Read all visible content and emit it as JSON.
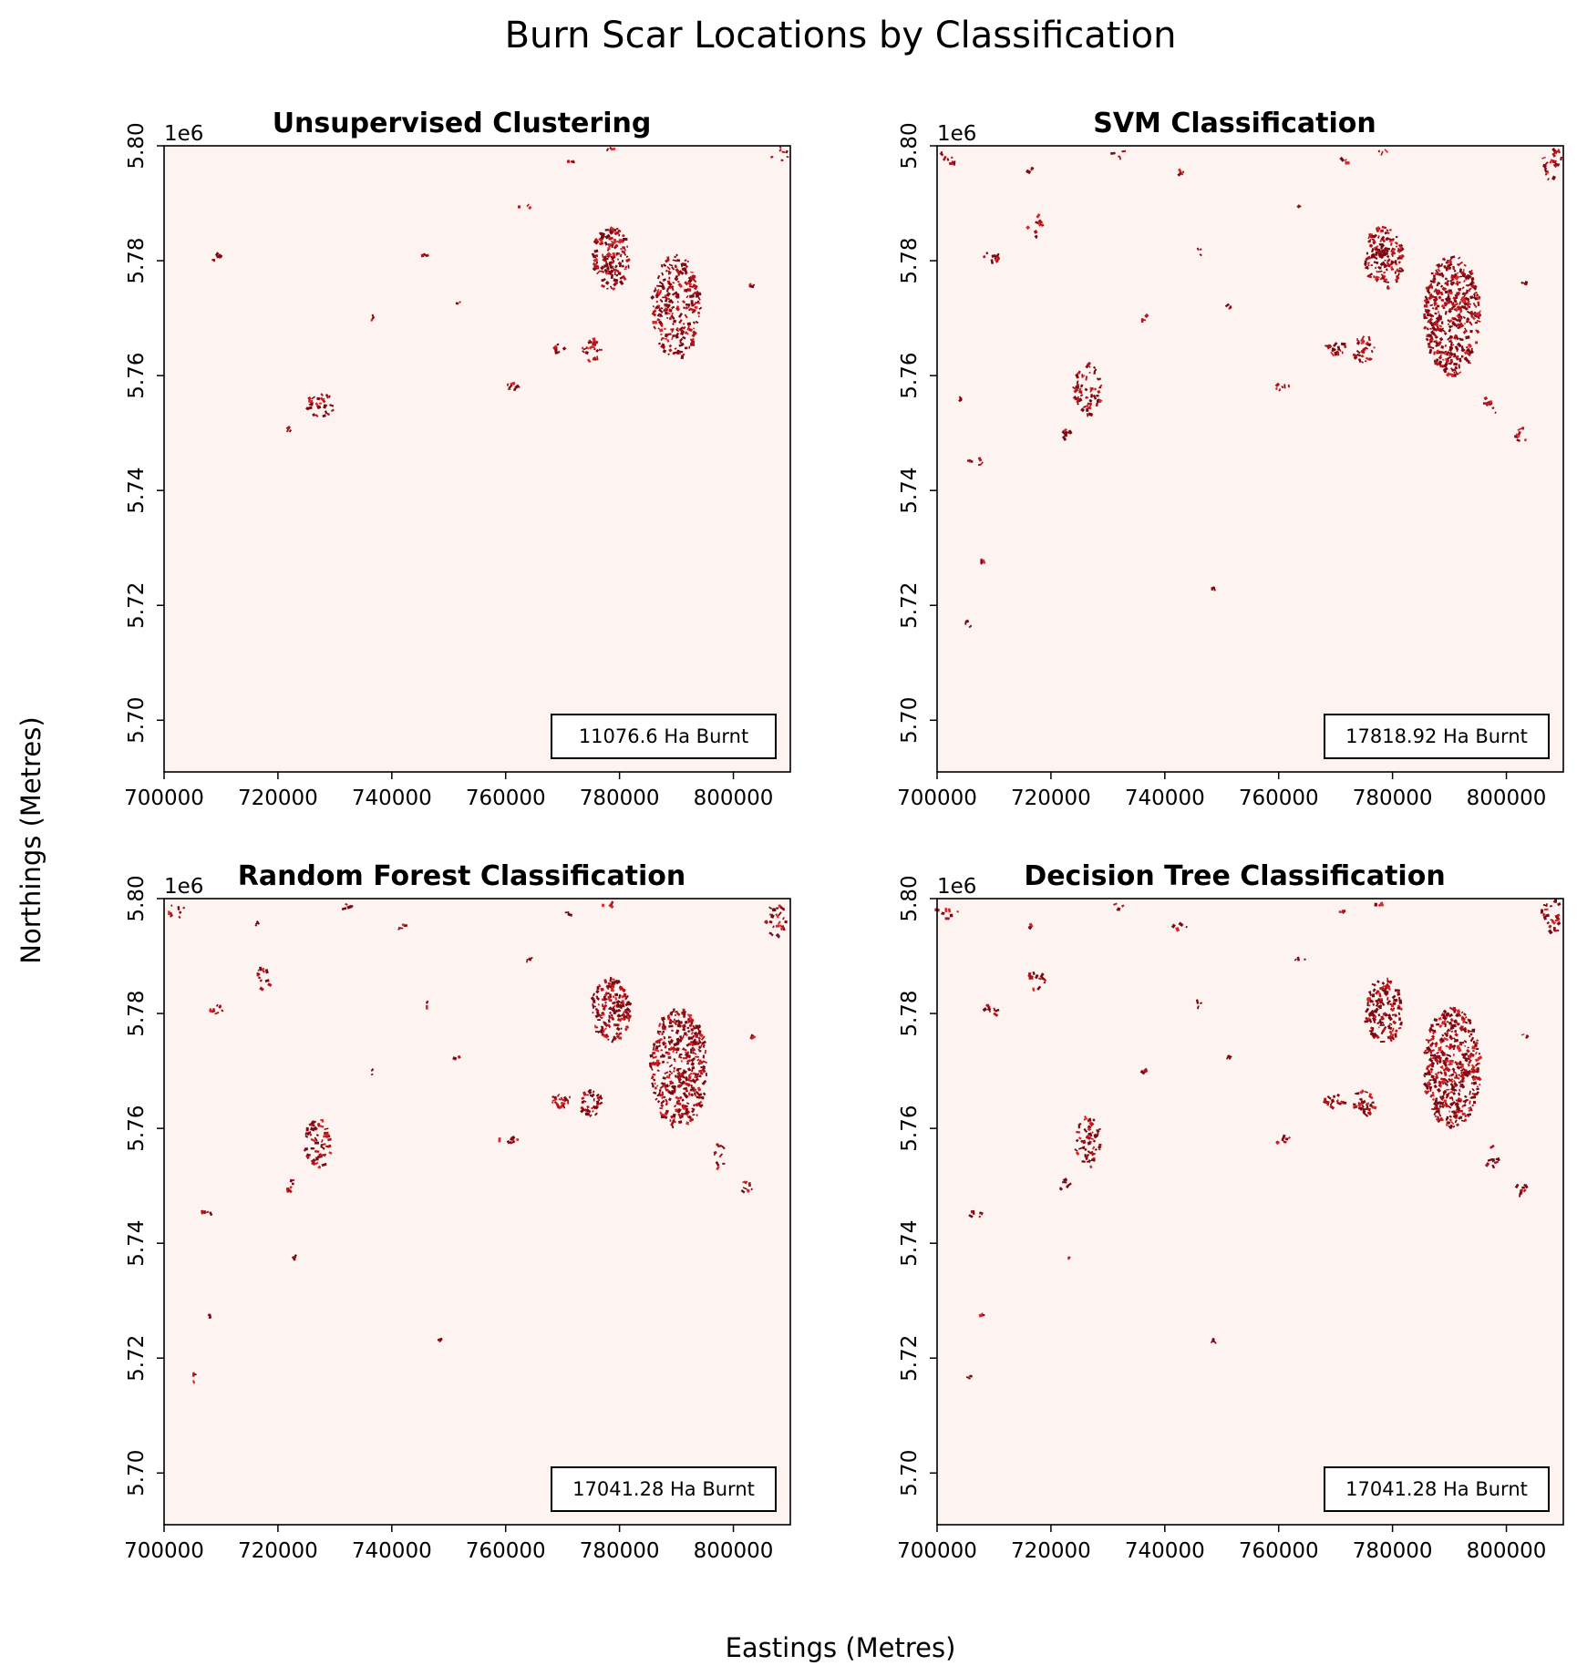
{
  "figure": {
    "title": "Burn Scar Locations by Classification",
    "xlabel": "Eastings (Metres)",
    "ylabel": "Northings (Metres)"
  },
  "colors": {
    "background_raster": "#fdf3f0",
    "burn_dark": "#7a0912",
    "burn_mid": "#b3131b",
    "burn_light": "#d8262a"
  },
  "chart_data": [
    {
      "type": "heatmap",
      "title": "Unsupervised Clustering",
      "area_label": "11076.6 Ha Burnt",
      "burnt_area_ha": 11076.6,
      "xlim": [
        700000,
        810000
      ],
      "ylim": [
        5691000,
        5800000
      ],
      "x_ticks": [
        700000,
        720000,
        740000,
        760000,
        780000,
        800000
      ],
      "x_tick_labels": [
        "700000",
        "720000",
        "740000",
        "760000",
        "780000",
        "800000"
      ],
      "y_ticks": [
        5700000,
        5720000,
        5740000,
        5760000,
        5780000,
        5800000
      ],
      "y_tick_labels": [
        "5.70",
        "5.72",
        "5.74",
        "5.76",
        "5.78",
        "5.80"
      ],
      "y_offset_label": "1e6",
      "burn_patches": [
        {
          "x": 778500,
          "y": 5780500,
          "w": 6500,
          "h": 11000,
          "density": 0.9
        },
        {
          "x": 790000,
          "y": 5772000,
          "w": 8500,
          "h": 18000,
          "density": 0.7
        },
        {
          "x": 775000,
          "y": 5764500,
          "w": 3500,
          "h": 4000,
          "density": 0.8
        },
        {
          "x": 769500,
          "y": 5764500,
          "w": 2500,
          "h": 2000,
          "density": 0.6
        },
        {
          "x": 727500,
          "y": 5755000,
          "w": 5000,
          "h": 4500,
          "density": 0.6
        },
        {
          "x": 709500,
          "y": 5780500,
          "w": 2500,
          "h": 1500,
          "density": 0.7
        },
        {
          "x": 760500,
          "y": 5758000,
          "w": 4000,
          "h": 1200,
          "density": 0.8
        },
        {
          "x": 746000,
          "y": 5781000,
          "w": 1000,
          "h": 1000,
          "density": 0.8
        },
        {
          "x": 736500,
          "y": 5770000,
          "w": 1200,
          "h": 1200,
          "density": 0.7
        },
        {
          "x": 751500,
          "y": 5772500,
          "w": 1200,
          "h": 1000,
          "density": 0.6
        },
        {
          "x": 722000,
          "y": 5750500,
          "w": 1000,
          "h": 1000,
          "density": 0.6
        },
        {
          "x": 803000,
          "y": 5776000,
          "w": 1500,
          "h": 800,
          "density": 0.7
        },
        {
          "x": 771500,
          "y": 5797000,
          "w": 1200,
          "h": 800,
          "density": 0.6
        },
        {
          "x": 778500,
          "y": 5799500,
          "w": 1500,
          "h": 600,
          "density": 0.4
        },
        {
          "x": 808000,
          "y": 5798500,
          "w": 3500,
          "h": 3000,
          "density": 0.3
        },
        {
          "x": 763500,
          "y": 5789500,
          "w": 3000,
          "h": 800,
          "density": 0.3
        }
      ]
    },
    {
      "type": "heatmap",
      "title": "SVM Classification",
      "area_label": "17818.92 Ha Burnt",
      "burnt_area_ha": 17818.92,
      "xlim": [
        700000,
        810000
      ],
      "ylim": [
        5691000,
        5800000
      ],
      "x_ticks": [
        700000,
        720000,
        740000,
        760000,
        780000,
        800000
      ],
      "x_tick_labels": [
        "700000",
        "720000",
        "740000",
        "760000",
        "780000",
        "800000"
      ],
      "y_ticks": [
        5700000,
        5720000,
        5740000,
        5760000,
        5780000,
        5800000
      ],
      "y_tick_labels": [
        "5.70",
        "5.72",
        "5.74",
        "5.76",
        "5.78",
        "5.80"
      ],
      "y_offset_label": "1e6",
      "burn_patches": [
        {
          "x": 778500,
          "y": 5780500,
          "w": 7000,
          "h": 11000,
          "density": 0.9
        },
        {
          "x": 790500,
          "y": 5770500,
          "w": 10000,
          "h": 21000,
          "density": 0.9
        },
        {
          "x": 775000,
          "y": 5764500,
          "w": 4000,
          "h": 4500,
          "density": 0.9
        },
        {
          "x": 770000,
          "y": 5764800,
          "w": 4000,
          "h": 2500,
          "density": 0.8
        },
        {
          "x": 726500,
          "y": 5757500,
          "w": 5000,
          "h": 9000,
          "density": 0.6
        },
        {
          "x": 709500,
          "y": 5780500,
          "w": 3000,
          "h": 1800,
          "density": 0.8
        },
        {
          "x": 760500,
          "y": 5758000,
          "w": 4000,
          "h": 1200,
          "density": 0.8
        },
        {
          "x": 746000,
          "y": 5781500,
          "w": 1000,
          "h": 1500,
          "density": 0.8
        },
        {
          "x": 736500,
          "y": 5770000,
          "w": 1200,
          "h": 1200,
          "density": 0.7
        },
        {
          "x": 751500,
          "y": 5772000,
          "w": 1500,
          "h": 1500,
          "density": 0.6
        },
        {
          "x": 722500,
          "y": 5750000,
          "w": 2000,
          "h": 2000,
          "density": 0.7
        },
        {
          "x": 707000,
          "y": 5745000,
          "w": 3000,
          "h": 1200,
          "density": 0.7
        },
        {
          "x": 717500,
          "y": 5786000,
          "w": 3000,
          "h": 4000,
          "density": 0.5
        },
        {
          "x": 803000,
          "y": 5776000,
          "w": 1500,
          "h": 800,
          "density": 0.7
        },
        {
          "x": 802500,
          "y": 5749500,
          "w": 2500,
          "h": 3000,
          "density": 0.5
        },
        {
          "x": 808000,
          "y": 5797000,
          "w": 3500,
          "h": 6000,
          "density": 0.5
        },
        {
          "x": 771500,
          "y": 5797500,
          "w": 1500,
          "h": 1200,
          "density": 0.7
        },
        {
          "x": 778000,
          "y": 5799000,
          "w": 2000,
          "h": 800,
          "density": 0.4
        },
        {
          "x": 742500,
          "y": 5795000,
          "w": 3000,
          "h": 1500,
          "density": 0.4
        },
        {
          "x": 732000,
          "y": 5798500,
          "w": 3000,
          "h": 1500,
          "density": 0.4
        },
        {
          "x": 716500,
          "y": 5795500,
          "w": 1000,
          "h": 1500,
          "density": 0.5
        },
        {
          "x": 702000,
          "y": 5798000,
          "w": 4000,
          "h": 3000,
          "density": 0.3
        },
        {
          "x": 763500,
          "y": 5789500,
          "w": 3000,
          "h": 800,
          "density": 0.3
        },
        {
          "x": 748500,
          "y": 5723000,
          "w": 600,
          "h": 600,
          "density": 0.6
        },
        {
          "x": 705500,
          "y": 5716500,
          "w": 1200,
          "h": 1500,
          "density": 0.5
        },
        {
          "x": 708000,
          "y": 5727500,
          "w": 600,
          "h": 800,
          "density": 0.5
        },
        {
          "x": 704000,
          "y": 5756000,
          "w": 600,
          "h": 600,
          "density": 0.5
        },
        {
          "x": 797500,
          "y": 5755000,
          "w": 2500,
          "h": 4000,
          "density": 0.4
        }
      ]
    },
    {
      "type": "heatmap",
      "title": "Random Forest Classification",
      "area_label": "17041.28 Ha Burnt",
      "burnt_area_ha": 17041.28,
      "xlim": [
        700000,
        810000
      ],
      "ylim": [
        5691000,
        5800000
      ],
      "x_ticks": [
        700000,
        720000,
        740000,
        760000,
        780000,
        800000
      ],
      "x_tick_labels": [
        "700000",
        "720000",
        "740000",
        "760000",
        "780000",
        "800000"
      ],
      "y_ticks": [
        5700000,
        5720000,
        5740000,
        5760000,
        5780000,
        5800000
      ],
      "y_tick_labels": [
        "5.70",
        "5.72",
        "5.74",
        "5.76",
        "5.78",
        "5.80"
      ],
      "y_offset_label": "1e6",
      "burn_patches": [
        {
          "x": 778500,
          "y": 5780500,
          "w": 7000,
          "h": 11000,
          "density": 0.9
        },
        {
          "x": 790500,
          "y": 5770500,
          "w": 10000,
          "h": 21000,
          "density": 0.85
        },
        {
          "x": 775000,
          "y": 5764500,
          "w": 4000,
          "h": 4500,
          "density": 0.9
        },
        {
          "x": 769500,
          "y": 5764800,
          "w": 4000,
          "h": 2500,
          "density": 0.8
        },
        {
          "x": 727000,
          "y": 5757500,
          "w": 5000,
          "h": 9000,
          "density": 0.6
        },
        {
          "x": 709500,
          "y": 5780800,
          "w": 3000,
          "h": 1800,
          "density": 0.8
        },
        {
          "x": 760500,
          "y": 5758000,
          "w": 4000,
          "h": 1200,
          "density": 0.8
        },
        {
          "x": 746000,
          "y": 5781500,
          "w": 1000,
          "h": 1500,
          "density": 0.8
        },
        {
          "x": 736500,
          "y": 5770000,
          "w": 1200,
          "h": 1200,
          "density": 0.7
        },
        {
          "x": 751500,
          "y": 5772500,
          "w": 1500,
          "h": 1000,
          "density": 0.6
        },
        {
          "x": 722500,
          "y": 5750000,
          "w": 2000,
          "h": 2000,
          "density": 0.7
        },
        {
          "x": 707000,
          "y": 5745000,
          "w": 3000,
          "h": 1200,
          "density": 0.7
        },
        {
          "x": 717500,
          "y": 5786000,
          "w": 3000,
          "h": 4000,
          "density": 0.5
        },
        {
          "x": 803000,
          "y": 5776000,
          "w": 1500,
          "h": 800,
          "density": 0.7
        },
        {
          "x": 802500,
          "y": 5749500,
          "w": 2500,
          "h": 3000,
          "density": 0.5
        },
        {
          "x": 807500,
          "y": 5796500,
          "w": 4000,
          "h": 7000,
          "density": 0.5
        },
        {
          "x": 771500,
          "y": 5797500,
          "w": 1500,
          "h": 1200,
          "density": 0.7
        },
        {
          "x": 778000,
          "y": 5799000,
          "w": 2000,
          "h": 800,
          "density": 0.4
        },
        {
          "x": 742500,
          "y": 5795000,
          "w": 3000,
          "h": 1500,
          "density": 0.4
        },
        {
          "x": 732000,
          "y": 5798500,
          "w": 3000,
          "h": 1500,
          "density": 0.4
        },
        {
          "x": 716500,
          "y": 5795500,
          "w": 1000,
          "h": 1500,
          "density": 0.5
        },
        {
          "x": 702000,
          "y": 5798000,
          "w": 4000,
          "h": 3000,
          "density": 0.3
        },
        {
          "x": 763500,
          "y": 5789500,
          "w": 3000,
          "h": 800,
          "density": 0.3
        },
        {
          "x": 748500,
          "y": 5723000,
          "w": 600,
          "h": 600,
          "density": 0.6
        },
        {
          "x": 705500,
          "y": 5716500,
          "w": 1200,
          "h": 1500,
          "density": 0.5
        },
        {
          "x": 708000,
          "y": 5727500,
          "w": 600,
          "h": 800,
          "density": 0.5
        },
        {
          "x": 723000,
          "y": 5737500,
          "w": 500,
          "h": 500,
          "density": 0.6
        },
        {
          "x": 797500,
          "y": 5755000,
          "w": 2500,
          "h": 5000,
          "density": 0.4
        }
      ]
    },
    {
      "type": "heatmap",
      "title": "Decision Tree Classification",
      "area_label": "17041.28 Ha Burnt",
      "burnt_area_ha": 17041.28,
      "xlim": [
        700000,
        810000
      ],
      "ylim": [
        5691000,
        5800000
      ],
      "x_ticks": [
        700000,
        720000,
        740000,
        760000,
        780000,
        800000
      ],
      "x_tick_labels": [
        "700000",
        "720000",
        "740000",
        "760000",
        "780000",
        "800000"
      ],
      "y_ticks": [
        5700000,
        5720000,
        5740000,
        5760000,
        5780000,
        5800000
      ],
      "y_tick_labels": [
        "5.70",
        "5.72",
        "5.74",
        "5.76",
        "5.78",
        "5.80"
      ],
      "y_offset_label": "1e6",
      "burn_patches": [
        {
          "x": 778500,
          "y": 5780500,
          "w": 7000,
          "h": 11000,
          "density": 0.9
        },
        {
          "x": 790500,
          "y": 5770500,
          "w": 10000,
          "h": 21000,
          "density": 0.9
        },
        {
          "x": 775000,
          "y": 5764500,
          "w": 4000,
          "h": 4500,
          "density": 0.9
        },
        {
          "x": 770000,
          "y": 5764800,
          "w": 4000,
          "h": 2500,
          "density": 0.8
        },
        {
          "x": 726500,
          "y": 5757500,
          "w": 5000,
          "h": 9000,
          "density": 0.6
        },
        {
          "x": 709500,
          "y": 5780500,
          "w": 3000,
          "h": 1800,
          "density": 0.8
        },
        {
          "x": 760500,
          "y": 5758000,
          "w": 4000,
          "h": 1200,
          "density": 0.8
        },
        {
          "x": 746000,
          "y": 5781500,
          "w": 1000,
          "h": 1500,
          "density": 0.8
        },
        {
          "x": 736500,
          "y": 5770000,
          "w": 1200,
          "h": 1200,
          "density": 0.7
        },
        {
          "x": 751500,
          "y": 5772000,
          "w": 1500,
          "h": 1500,
          "density": 0.6
        },
        {
          "x": 722500,
          "y": 5750000,
          "w": 2000,
          "h": 2000,
          "density": 0.7
        },
        {
          "x": 707000,
          "y": 5745000,
          "w": 3000,
          "h": 1200,
          "density": 0.7
        },
        {
          "x": 717500,
          "y": 5786000,
          "w": 3000,
          "h": 4000,
          "density": 0.5
        },
        {
          "x": 803000,
          "y": 5776000,
          "w": 1500,
          "h": 800,
          "density": 0.7
        },
        {
          "x": 802500,
          "y": 5749500,
          "w": 2500,
          "h": 3000,
          "density": 0.5
        },
        {
          "x": 808000,
          "y": 5797000,
          "w": 3500,
          "h": 6000,
          "density": 0.5
        },
        {
          "x": 771500,
          "y": 5797500,
          "w": 1500,
          "h": 1200,
          "density": 0.7
        },
        {
          "x": 778000,
          "y": 5799000,
          "w": 2000,
          "h": 800,
          "density": 0.4
        },
        {
          "x": 742500,
          "y": 5795000,
          "w": 3000,
          "h": 1500,
          "density": 0.4
        },
        {
          "x": 732000,
          "y": 5798500,
          "w": 3000,
          "h": 1500,
          "density": 0.4
        },
        {
          "x": 716500,
          "y": 5795500,
          "w": 1000,
          "h": 1500,
          "density": 0.5
        },
        {
          "x": 702000,
          "y": 5798000,
          "w": 4000,
          "h": 3000,
          "density": 0.3
        },
        {
          "x": 763500,
          "y": 5789500,
          "w": 3000,
          "h": 800,
          "density": 0.3
        },
        {
          "x": 748500,
          "y": 5723000,
          "w": 600,
          "h": 600,
          "density": 0.6
        },
        {
          "x": 705500,
          "y": 5716500,
          "w": 1200,
          "h": 1500,
          "density": 0.5
        },
        {
          "x": 708000,
          "y": 5727500,
          "w": 600,
          "h": 800,
          "density": 0.5
        },
        {
          "x": 723000,
          "y": 5737500,
          "w": 500,
          "h": 500,
          "density": 0.6
        },
        {
          "x": 797500,
          "y": 5755000,
          "w": 2500,
          "h": 4000,
          "density": 0.4
        }
      ]
    }
  ]
}
